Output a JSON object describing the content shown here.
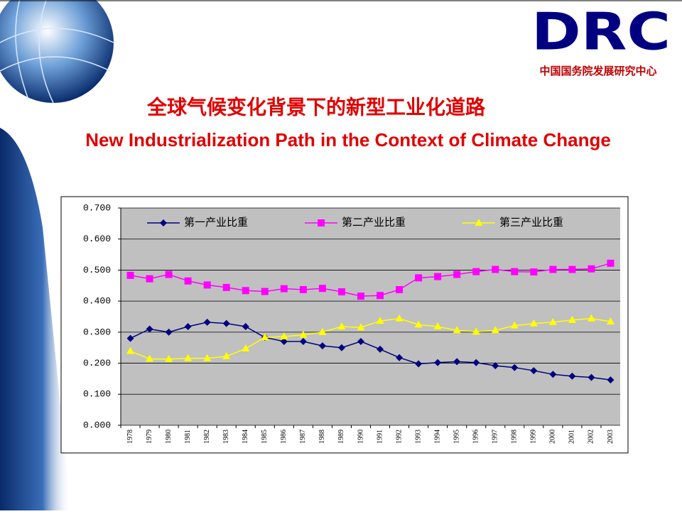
{
  "slide": {
    "logo": "DRC",
    "org": "中国国务院发展研究中心",
    "title_cn": "全球气候变化背景下的新型工业化道路",
    "title_en": "New Industrialization Path in the Context of Climate Change"
  },
  "chart_data": {
    "type": "line",
    "categories": [
      "1978",
      "1979",
      "1980",
      "1981",
      "1982",
      "1983",
      "1984",
      "1985",
      "1986",
      "1987",
      "1988",
      "1989",
      "1990",
      "1991",
      "1992",
      "1993",
      "1994",
      "1995",
      "1996",
      "1997",
      "1998",
      "1999",
      "2000",
      "2001",
      "2002",
      "2003"
    ],
    "series": [
      {
        "name": "第一产业比重",
        "color": "#000080",
        "marker": "diamond",
        "values": [
          0.28,
          0.31,
          0.3,
          0.318,
          0.332,
          0.328,
          0.318,
          0.283,
          0.27,
          0.27,
          0.256,
          0.25,
          0.27,
          0.245,
          0.218,
          0.198,
          0.202,
          0.205,
          0.202,
          0.192,
          0.186,
          0.176,
          0.164,
          0.158,
          0.154,
          0.146
        ]
      },
      {
        "name": "第二产业比重",
        "color": "#ff00ff",
        "marker": "square",
        "values": [
          0.483,
          0.472,
          0.486,
          0.465,
          0.452,
          0.444,
          0.434,
          0.431,
          0.44,
          0.437,
          0.441,
          0.43,
          0.416,
          0.418,
          0.437,
          0.475,
          0.479,
          0.486,
          0.495,
          0.502,
          0.495,
          0.494,
          0.502,
          0.502,
          0.504,
          0.522
        ]
      },
      {
        "name": "第三产业比重",
        "color": "#ffff00",
        "marker": "triangle",
        "values": [
          0.239,
          0.214,
          0.213,
          0.216,
          0.216,
          0.222,
          0.247,
          0.283,
          0.286,
          0.291,
          0.3,
          0.318,
          0.315,
          0.336,
          0.344,
          0.324,
          0.318,
          0.306,
          0.301,
          0.306,
          0.321,
          0.328,
          0.332,
          0.339,
          0.344,
          0.334
        ]
      }
    ],
    "ylim": [
      0,
      0.7
    ],
    "yticks": [
      {
        "value": 0,
        "label": "0.000"
      },
      {
        "value": 0.1,
        "label": "0.100"
      },
      {
        "value": 0.2,
        "label": "0.200"
      },
      {
        "value": 0.3,
        "label": "0.300"
      },
      {
        "value": 0.4,
        "label": "0.400"
      },
      {
        "value": 0.5,
        "label": "0.500"
      },
      {
        "value": 0.6,
        "label": "0.600"
      },
      {
        "value": 0.7,
        "label": "0.700"
      }
    ],
    "grid": true,
    "plot_background": "#c0c0c0"
  }
}
